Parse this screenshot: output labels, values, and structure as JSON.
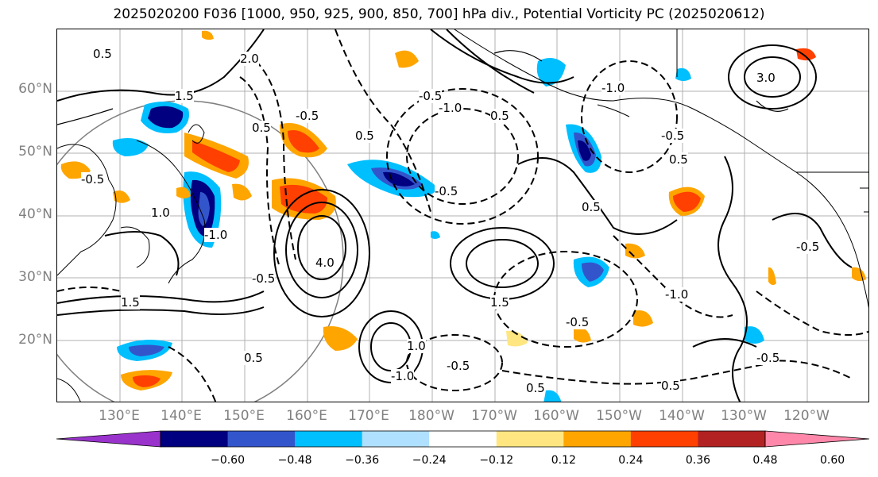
{
  "title": "2025020200 F036 [1000, 950, 925, 900, 850, 700] hPa div., Potential Vorticity PC (2025020612)",
  "lat_labels": [
    "60°N",
    "50°N",
    "40°N",
    "30°N",
    "20°N"
  ],
  "lon_labels": [
    "130°E",
    "140°E",
    "150°E",
    "160°E",
    "170°E",
    "180°W",
    "170°W",
    "160°W",
    "150°W",
    "140°W",
    "130°W",
    "120°W"
  ],
  "colorbar": {
    "colors": [
      "#9933cc",
      "#000080",
      "#3355cc",
      "#00bfff",
      "#b0e0ff",
      "#ffffff",
      "#ffe680",
      "#ffa500",
      "#ff4000",
      "#b22222",
      "#ff88aa"
    ],
    "ticks": [
      "−0.60",
      "−0.48",
      "−0.36",
      "−0.24",
      "−0.12",
      "0.12",
      "0.24",
      "0.36",
      "0.48",
      "0.60"
    ]
  },
  "contour_labels": [
    "0.5",
    "1.5",
    "2.0",
    "1.0",
    "-0.5",
    "-1.0",
    "-0.5",
    "0.5",
    "-0.5",
    "1.5",
    "4.0",
    "0.5",
    "-1.0",
    "0.5",
    "-0.5",
    "-1.0",
    "-0.5",
    "-0.5",
    "3.0",
    "0.5",
    "1.5",
    "-0.5",
    "0.5",
    "-1.0",
    "0.5",
    "-0.5",
    "0.5",
    "-0.5",
    "1.0",
    "-1.0",
    "-0.5",
    "0.5"
  ]
}
